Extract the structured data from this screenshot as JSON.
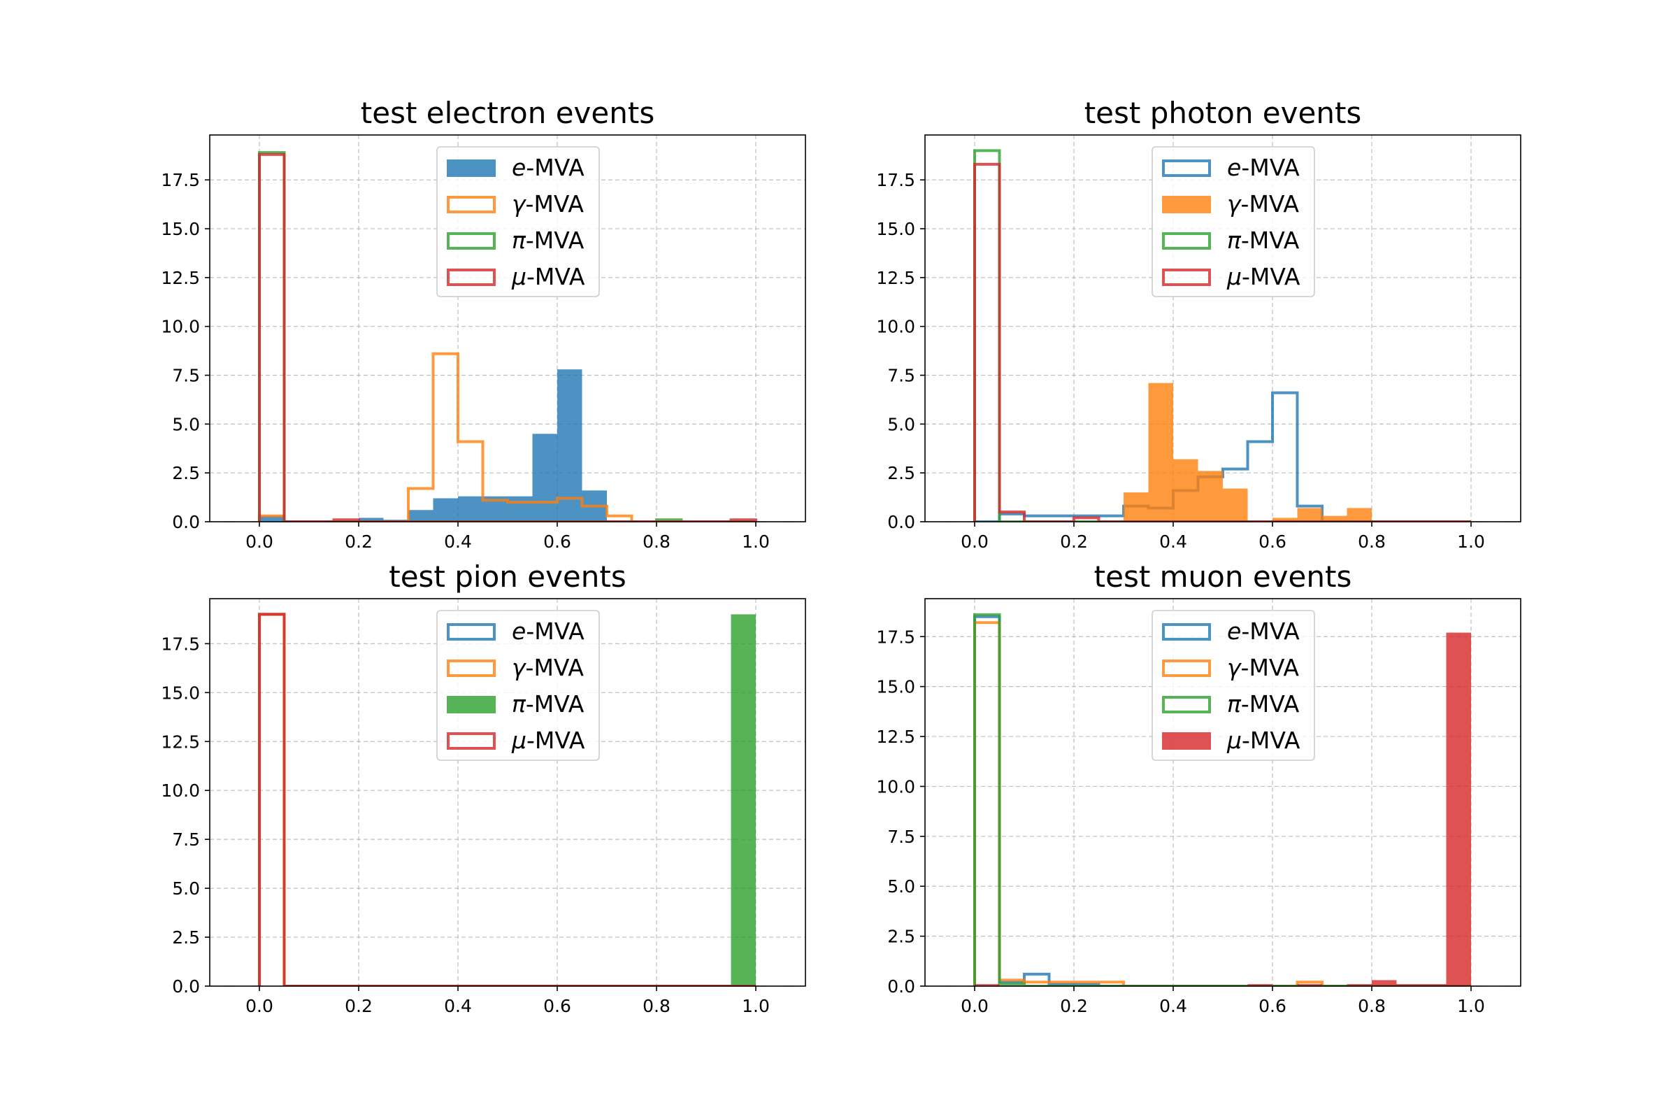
{
  "chart_data": [
    {
      "type": "histogram",
      "title": "test electron events",
      "xlim": [
        -0.1,
        1.1
      ],
      "ylim": [
        0,
        19.8
      ],
      "xticks": [
        "0.0",
        "0.2",
        "0.4",
        "0.6",
        "0.8",
        "1.0"
      ],
      "yticks": [
        "0.0",
        "2.5",
        "5.0",
        "7.5",
        "10.0",
        "12.5",
        "15.0",
        "17.5"
      ],
      "grid": true,
      "legend": "top-center",
      "bin_edges": [
        0,
        0.05,
        0.1,
        0.15,
        0.2,
        0.25,
        0.3,
        0.35,
        0.4,
        0.45,
        0.5,
        0.55,
        0.6,
        0.65,
        0.7,
        0.75,
        0.8,
        0.85,
        0.9,
        0.95,
        1.0
      ],
      "series": [
        {
          "name": "e-MVA",
          "greek": false,
          "letter": "e",
          "color": "#1f77b4",
          "filled": true,
          "values": [
            0.3,
            0,
            0,
            0,
            0.2,
            0.1,
            0.6,
            1.2,
            1.3,
            1.3,
            1.3,
            4.5,
            7.8,
            1.6,
            0,
            0,
            0,
            0,
            0,
            0
          ]
        },
        {
          "name": "γ-MVA",
          "greek": true,
          "letter": "γ",
          "color": "#ff7f0e",
          "filled": false,
          "values": [
            0.3,
            0,
            0,
            0,
            0,
            0,
            1.7,
            8.6,
            4.1,
            1.1,
            1.0,
            1.0,
            1.2,
            0.8,
            0.3,
            0,
            0,
            0,
            0,
            0
          ]
        },
        {
          "name": "π-MVA",
          "greek": true,
          "letter": "π",
          "color": "#2ca02c",
          "filled": false,
          "values": [
            18.9,
            0,
            0,
            0,
            0,
            0,
            0,
            0,
            0,
            0,
            0,
            0,
            0,
            0,
            0,
            0,
            0.1,
            0,
            0,
            0
          ]
        },
        {
          "name": "μ-MVA",
          "greek": true,
          "letter": "μ",
          "color": "#d62728",
          "filled": false,
          "values": [
            18.8,
            0,
            0,
            0.1,
            0,
            0,
            0,
            0,
            0,
            0,
            0,
            0,
            0,
            0,
            0,
            0,
            0,
            0,
            0,
            0.1
          ]
        }
      ]
    },
    {
      "type": "histogram",
      "title": "test photon events",
      "xlim": [
        -0.1,
        1.1
      ],
      "ylim": [
        0,
        19.8
      ],
      "xticks": [
        "0.0",
        "0.2",
        "0.4",
        "0.6",
        "0.8",
        "1.0"
      ],
      "yticks": [
        "0.0",
        "2.5",
        "5.0",
        "7.5",
        "10.0",
        "12.5",
        "15.0",
        "17.5"
      ],
      "grid": true,
      "legend": "top-center",
      "bin_edges": [
        0,
        0.05,
        0.1,
        0.15,
        0.2,
        0.25,
        0.3,
        0.35,
        0.4,
        0.45,
        0.5,
        0.55,
        0.6,
        0.65,
        0.7,
        0.75,
        0.8,
        0.85,
        0.9,
        0.95,
        1.0
      ],
      "series": [
        {
          "name": "e-MVA",
          "greek": false,
          "letter": "e",
          "color": "#1f77b4",
          "filled": false,
          "values": [
            0,
            0.4,
            0.3,
            0.3,
            0.3,
            0.3,
            0.8,
            0.7,
            1.6,
            2.3,
            2.7,
            4.1,
            6.6,
            0.8,
            0,
            0,
            0,
            0,
            0,
            0
          ]
        },
        {
          "name": "γ-MVA",
          "greek": true,
          "letter": "γ",
          "color": "#ff7f0e",
          "filled": true,
          "values": [
            0,
            0,
            0,
            0,
            0,
            0,
            1.5,
            7.1,
            3.2,
            2.6,
            1.7,
            0,
            0.2,
            0.7,
            0.3,
            0.7,
            0,
            0,
            0,
            0
          ]
        },
        {
          "name": "π-MVA",
          "greek": true,
          "letter": "π",
          "color": "#2ca02c",
          "filled": false,
          "values": [
            19.0,
            0,
            0,
            0,
            0,
            0,
            0,
            0,
            0,
            0,
            0,
            0,
            0,
            0,
            0,
            0,
            0,
            0,
            0,
            0
          ]
        },
        {
          "name": "μ-MVA",
          "greek": true,
          "letter": "μ",
          "color": "#d62728",
          "filled": false,
          "values": [
            18.3,
            0.5,
            0,
            0,
            0.2,
            0,
            0,
            0,
            0,
            0,
            0,
            0,
            0,
            0,
            0,
            0,
            0,
            0,
            0,
            0
          ]
        }
      ]
    },
    {
      "type": "histogram",
      "title": "test pion events",
      "xlim": [
        -0.1,
        1.1
      ],
      "ylim": [
        0,
        19.8
      ],
      "xticks": [
        "0.0",
        "0.2",
        "0.4",
        "0.6",
        "0.8",
        "1.0"
      ],
      "yticks": [
        "0.0",
        "2.5",
        "5.0",
        "7.5",
        "10.0",
        "12.5",
        "15.0",
        "17.5"
      ],
      "grid": true,
      "legend": "top-center",
      "bin_edges": [
        0,
        0.05,
        0.1,
        0.15,
        0.2,
        0.25,
        0.3,
        0.35,
        0.4,
        0.45,
        0.5,
        0.55,
        0.6,
        0.65,
        0.7,
        0.75,
        0.8,
        0.85,
        0.9,
        0.95,
        1.0
      ],
      "series": [
        {
          "name": "e-MVA",
          "greek": false,
          "letter": "e",
          "color": "#1f77b4",
          "filled": false,
          "values": [
            19.0,
            0,
            0,
            0,
            0,
            0,
            0,
            0,
            0,
            0,
            0,
            0,
            0,
            0,
            0,
            0,
            0,
            0,
            0,
            0
          ]
        },
        {
          "name": "γ-MVA",
          "greek": true,
          "letter": "γ",
          "color": "#ff7f0e",
          "filled": false,
          "values": [
            19.0,
            0,
            0,
            0,
            0,
            0,
            0,
            0,
            0,
            0,
            0,
            0,
            0,
            0,
            0,
            0,
            0,
            0,
            0,
            0
          ]
        },
        {
          "name": "π-MVA",
          "greek": true,
          "letter": "π",
          "color": "#2ca02c",
          "filled": true,
          "values": [
            0,
            0,
            0,
            0,
            0,
            0,
            0,
            0,
            0,
            0,
            0,
            0,
            0,
            0,
            0,
            0,
            0,
            0,
            0,
            19.0
          ]
        },
        {
          "name": "μ-MVA",
          "greek": true,
          "letter": "μ",
          "color": "#d62728",
          "filled": false,
          "values": [
            19.0,
            0,
            0,
            0,
            0,
            0,
            0,
            0,
            0,
            0,
            0,
            0,
            0,
            0,
            0,
            0,
            0,
            0,
            0,
            0
          ]
        }
      ]
    },
    {
      "type": "histogram",
      "title": "test muon events",
      "xlim": [
        -0.1,
        1.1
      ],
      "ylim": [
        0,
        19.4
      ],
      "xticks": [
        "0.0",
        "0.2",
        "0.4",
        "0.6",
        "0.8",
        "1.0"
      ],
      "yticks": [
        "0.0",
        "2.5",
        "5.0",
        "7.5",
        "10.0",
        "12.5",
        "15.0",
        "17.5"
      ],
      "grid": true,
      "legend": "top-center",
      "bin_edges": [
        0,
        0.05,
        0.1,
        0.15,
        0.2,
        0.25,
        0.3,
        0.35,
        0.4,
        0.45,
        0.5,
        0.55,
        0.6,
        0.65,
        0.7,
        0.75,
        0.8,
        0.85,
        0.9,
        0.95,
        1.0
      ],
      "series": [
        {
          "name": "e-MVA",
          "greek": false,
          "letter": "e",
          "color": "#1f77b4",
          "filled": false,
          "values": [
            18.5,
            0.2,
            0.6,
            0.1,
            0.1,
            0,
            0,
            0,
            0,
            0,
            0,
            0,
            0,
            0,
            0,
            0,
            0,
            0,
            0,
            0
          ]
        },
        {
          "name": "γ-MVA",
          "greek": true,
          "letter": "γ",
          "color": "#ff7f0e",
          "filled": false,
          "values": [
            18.2,
            0.3,
            0.2,
            0.2,
            0.2,
            0.2,
            0,
            0,
            0,
            0,
            0,
            0,
            0,
            0.2,
            0,
            0,
            0,
            0,
            0,
            0
          ]
        },
        {
          "name": "π-MVA",
          "greek": true,
          "letter": "π",
          "color": "#2ca02c",
          "filled": false,
          "values": [
            18.6,
            0.1,
            0,
            0,
            0,
            0,
            0,
            0,
            0,
            0,
            0,
            0,
            0,
            0,
            0,
            0,
            0,
            0,
            0,
            0
          ]
        },
        {
          "name": "μ-MVA",
          "greek": true,
          "letter": "μ",
          "color": "#d62728",
          "filled": true,
          "values": [
            0.1,
            0,
            0,
            0,
            0,
            0,
            0,
            0,
            0,
            0,
            0,
            0.1,
            0,
            0.1,
            0,
            0.1,
            0.3,
            0.1,
            0.1,
            17.7
          ]
        }
      ]
    }
  ]
}
